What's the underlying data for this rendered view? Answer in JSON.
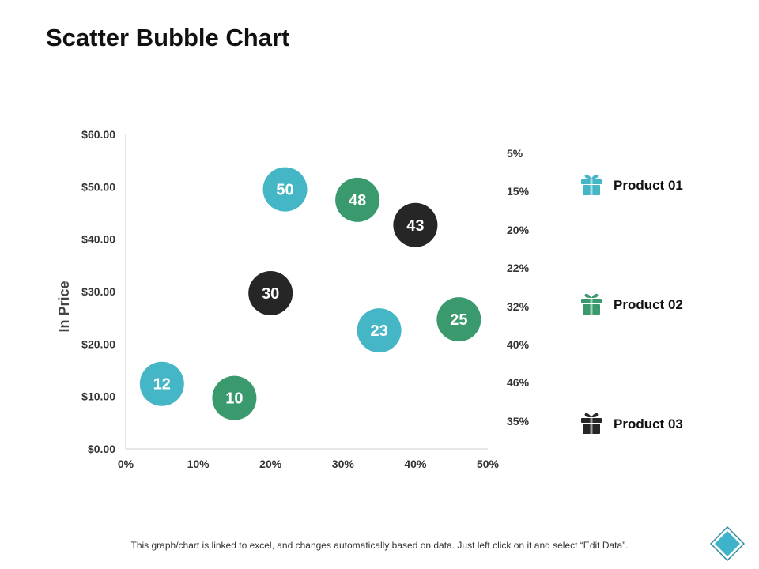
{
  "title": "Scatter Bubble Chart",
  "footer": "This graph/chart is linked to excel, and changes automatically based on data. Just left click on it and select “Edit Data”.",
  "colors": {
    "product01": "#45b6c6",
    "product02": "#3a9a6e",
    "product03": "#262626"
  },
  "percent_labels": [
    "5%",
    "15%",
    "20%",
    "22%",
    "32%",
    "40%",
    "46%",
    "35%"
  ],
  "legend": [
    {
      "label": "Product 01",
      "color": "#45b6c6",
      "icon": "gift-box-icon"
    },
    {
      "label": "Product 02",
      "color": "#3a9a6e",
      "icon": "gift-box-icon"
    },
    {
      "label": "Product 03",
      "color": "#262626",
      "icon": "gift-box-icon"
    }
  ],
  "chart_data": {
    "type": "scatter",
    "title": "",
    "xlabel": "",
    "ylabel": "In Price",
    "xlim": [
      0,
      50
    ],
    "ylim": [
      0,
      60
    ],
    "x_ticks": [
      "0%",
      "10%",
      "20%",
      "30%",
      "40%",
      "50%"
    ],
    "y_ticks": [
      "$0.00",
      "$10.00",
      "$20.00",
      "$30.00",
      "$40.00",
      "$50.00",
      "$60.00"
    ],
    "grid": false,
    "legend_position": "right",
    "series": [
      {
        "name": "Product 01",
        "color": "#45b6c6",
        "points": [
          {
            "x": 5,
            "y": 12.4,
            "label": "12"
          },
          {
            "x": 22,
            "y": 49.5,
            "label": "50"
          },
          {
            "x": 35,
            "y": 22.6,
            "label": "23"
          }
        ]
      },
      {
        "name": "Product 02",
        "color": "#3a9a6e",
        "points": [
          {
            "x": 15,
            "y": 9.7,
            "label": "10"
          },
          {
            "x": 32,
            "y": 47.5,
            "label": "48"
          },
          {
            "x": 46,
            "y": 24.7,
            "label": "25"
          }
        ]
      },
      {
        "name": "Product 03",
        "color": "#262626",
        "points": [
          {
            "x": 20,
            "y": 29.7,
            "label": "30"
          },
          {
            "x": 40,
            "y": 42.7,
            "label": "43"
          }
        ]
      }
    ]
  }
}
